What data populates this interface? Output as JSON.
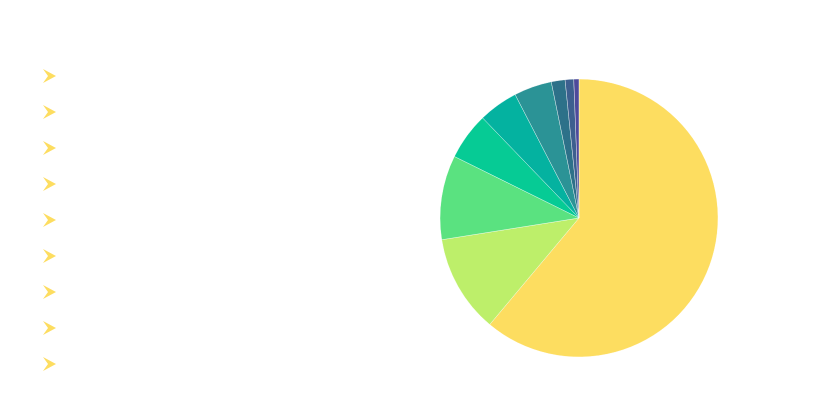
{
  "chart_data": {
    "type": "pie",
    "title": "",
    "start": "top",
    "direction": "clockwise",
    "legend_position": "left",
    "legend_marker": "arrow",
    "legend_marker_color": "#FDDD60",
    "slices": [
      {
        "label": "",
        "value": 61.1,
        "color": "#FDDD60"
      },
      {
        "label": "",
        "value": 11.4,
        "color": "#BDEF6A"
      },
      {
        "label": "",
        "value": 9.8,
        "color": "#5AE280"
      },
      {
        "label": "",
        "value": 5.5,
        "color": "#06CB95"
      },
      {
        "label": "",
        "value": 4.6,
        "color": "#04B2A0"
      },
      {
        "label": "",
        "value": 4.4,
        "color": "#2B9396"
      },
      {
        "label": "",
        "value": 1.6,
        "color": "#2D7189"
      },
      {
        "label": "",
        "value": 1.0,
        "color": "#3D5F8F"
      },
      {
        "label": "",
        "value": 0.6,
        "color": "#4E4A9A"
      }
    ]
  }
}
